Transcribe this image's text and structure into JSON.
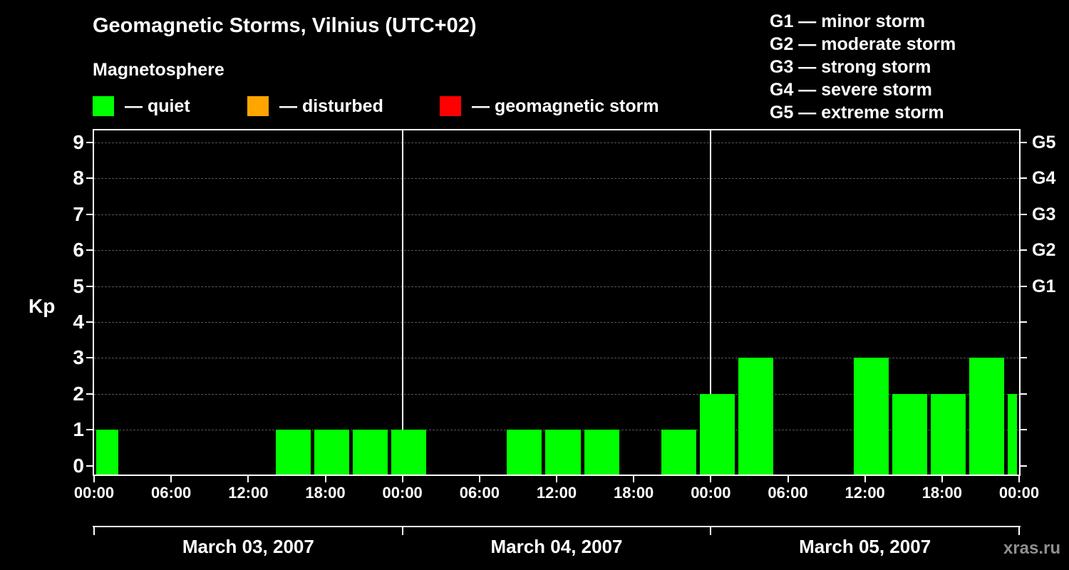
{
  "header": {
    "title": "Geomagnetic Storms, Vilnius (UTC+02)",
    "subtitle": "Magnetosphere"
  },
  "legend": {
    "items": [
      {
        "name": "quiet",
        "swatch_color": "#00ff00",
        "text": "— quiet"
      },
      {
        "name": "disturbed",
        "swatch_color": "#ffa500",
        "text": "— disturbed"
      },
      {
        "name": "storm",
        "swatch_color": "#ff0000",
        "text": "— geomagnetic storm"
      }
    ]
  },
  "storm_scale_legend": {
    "items": [
      "G1 — minor storm",
      "G2 — moderate storm",
      "G3 — strong storm",
      "G4 — severe storm",
      "G5 — extreme storm"
    ]
  },
  "watermark": "xras.ru",
  "chart_data": {
    "type": "bar",
    "title": "Geomagnetic Storms, Vilnius (UTC+02)",
    "ylabel": "Kp",
    "ylim": [
      0,
      9
    ],
    "y_ticks": [
      0,
      1,
      2,
      3,
      4,
      5,
      6,
      7,
      8,
      9
    ],
    "grid": "dashed horizontal line at each Kp level",
    "right_axis_labels": [
      {
        "kp": 9,
        "label": "G5"
      },
      {
        "kp": 8,
        "label": "G4"
      },
      {
        "kp": 7,
        "label": "G3"
      },
      {
        "kp": 6,
        "label": "G2"
      },
      {
        "kp": 5,
        "label": "G1"
      }
    ],
    "x_axis": {
      "timezone": "UTC+02",
      "hour_ticks": [
        {
          "hour": 0,
          "label": "00:00"
        },
        {
          "hour": 6,
          "label": "06:00"
        },
        {
          "hour": 12,
          "label": "12:00"
        },
        {
          "hour": 18,
          "label": "18:00"
        },
        {
          "hour": 24,
          "label": "00:00"
        },
        {
          "hour": 30,
          "label": "06:00"
        },
        {
          "hour": 36,
          "label": "12:00"
        },
        {
          "hour": 42,
          "label": "18:00"
        },
        {
          "hour": 48,
          "label": "00:00"
        },
        {
          "hour": 54,
          "label": "06:00"
        },
        {
          "hour": 60,
          "label": "12:00"
        },
        {
          "hour": 66,
          "label": "18:00"
        },
        {
          "hour": 72,
          "label": "00:00"
        }
      ],
      "days": [
        {
          "label": "March 03, 2007",
          "start_hour": 0,
          "end_hour": 24
        },
        {
          "label": "March 04, 2007",
          "start_hour": 24,
          "end_hour": 48
        },
        {
          "label": "March 05, 2007",
          "start_hour": 48,
          "end_hour": 72
        }
      ]
    },
    "status_colors": {
      "quiet": "#00ff00",
      "disturbed": "#ffa500",
      "storm": "#ff0000"
    },
    "bars": [
      {
        "start_hour": -1,
        "end_hour": 2,
        "kp": 1,
        "status": "quiet"
      },
      {
        "start_hour": 14,
        "end_hour": 17,
        "kp": 1,
        "status": "quiet"
      },
      {
        "start_hour": 17,
        "end_hour": 20,
        "kp": 1,
        "status": "quiet"
      },
      {
        "start_hour": 20,
        "end_hour": 23,
        "kp": 1,
        "status": "quiet"
      },
      {
        "start_hour": 23,
        "end_hour": 26,
        "kp": 1,
        "status": "quiet"
      },
      {
        "start_hour": 32,
        "end_hour": 35,
        "kp": 1,
        "status": "quiet"
      },
      {
        "start_hour": 35,
        "end_hour": 38,
        "kp": 1,
        "status": "quiet"
      },
      {
        "start_hour": 38,
        "end_hour": 41,
        "kp": 1,
        "status": "quiet"
      },
      {
        "start_hour": 44,
        "end_hour": 47,
        "kp": 1,
        "status": "quiet"
      },
      {
        "start_hour": 47,
        "end_hour": 50,
        "kp": 2,
        "status": "quiet"
      },
      {
        "start_hour": 50,
        "end_hour": 53,
        "kp": 3,
        "status": "quiet"
      },
      {
        "start_hour": 59,
        "end_hour": 62,
        "kp": 3,
        "status": "quiet"
      },
      {
        "start_hour": 62,
        "end_hour": 65,
        "kp": 2,
        "status": "quiet"
      },
      {
        "start_hour": 65,
        "end_hour": 68,
        "kp": 2,
        "status": "quiet"
      },
      {
        "start_hour": 68,
        "end_hour": 71,
        "kp": 3,
        "status": "quiet"
      },
      {
        "start_hour": 71,
        "end_hour": 74,
        "kp": 2,
        "status": "quiet"
      }
    ]
  }
}
